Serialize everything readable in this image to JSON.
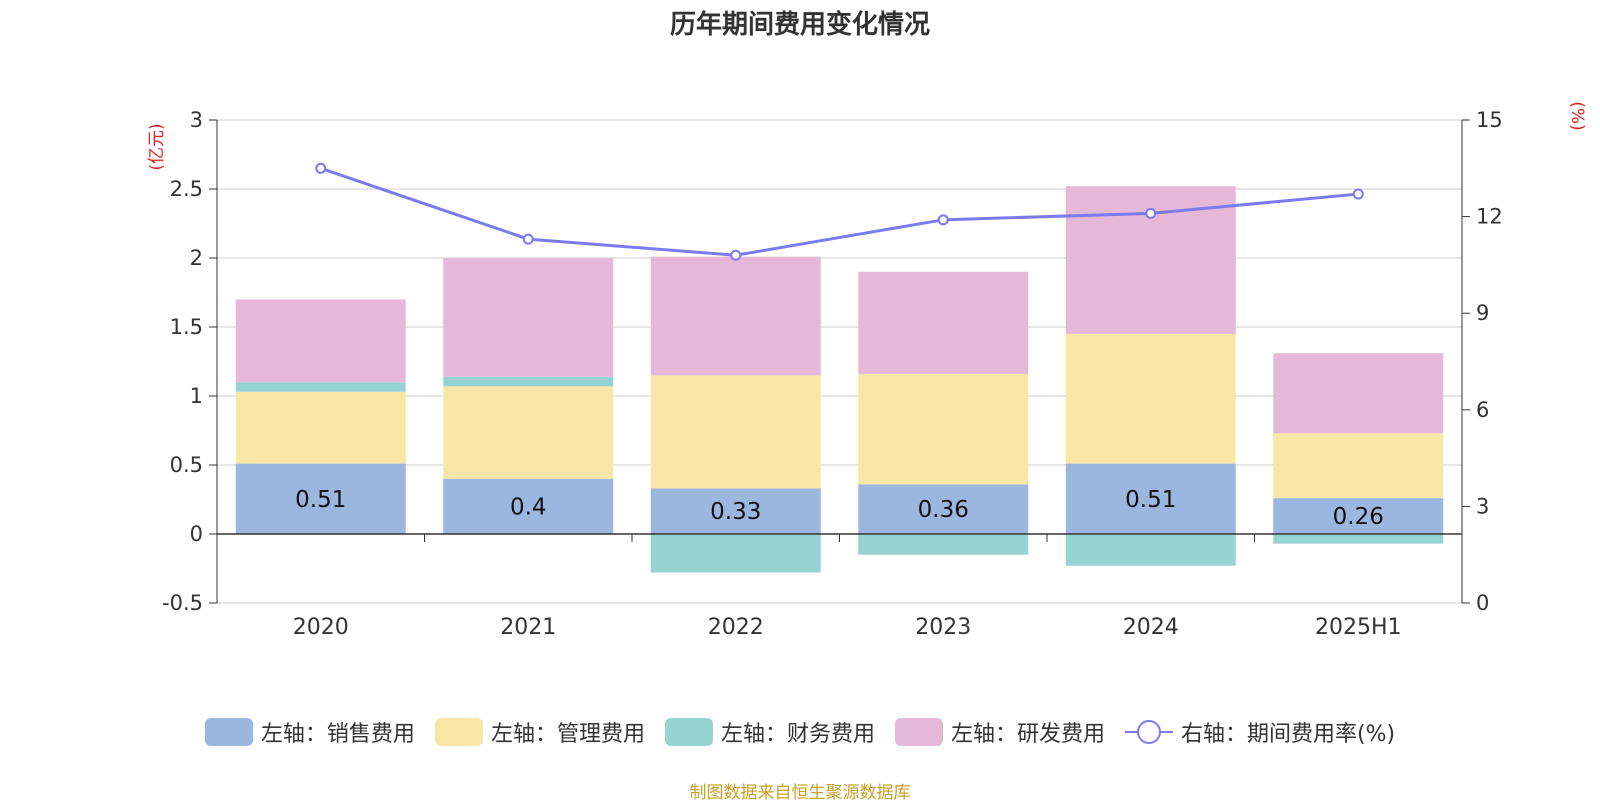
{
  "chart_data": {
    "type": "bar",
    "title": "历年期间费用变化情况",
    "categories": [
      "2020",
      "2021",
      "2022",
      "2023",
      "2024",
      "2025H1"
    ],
    "left_axis": {
      "unit": "(亿元)",
      "ticks": [
        "3",
        "2.5",
        "2",
        "1.5",
        "1",
        "0.5",
        "0",
        "-0.5"
      ],
      "range": [
        -0.5,
        3
      ]
    },
    "right_axis": {
      "unit": "(%)",
      "ticks": [
        "15",
        "12",
        "9",
        "6",
        "3",
        "0"
      ],
      "range": [
        0,
        15
      ]
    },
    "grid": true,
    "stacked": true,
    "series": [
      {
        "name": "左轴：销售费用",
        "axis": "left",
        "type": "bar",
        "color": "#9bb7e0",
        "values": [
          0.51,
          0.4,
          0.33,
          0.36,
          0.51,
          0.26
        ]
      },
      {
        "name": "左轴：管理费用",
        "axis": "left",
        "type": "bar",
        "color": "#f8e6a6",
        "values": [
          0.52,
          0.67,
          0.82,
          0.8,
          0.94,
          0.47
        ]
      },
      {
        "name": "左轴：财务费用",
        "axis": "left",
        "type": "bar",
        "color": "#96d4d4",
        "values": [
          0.07,
          0.07,
          -0.28,
          -0.15,
          -0.23,
          -0.07
        ]
      },
      {
        "name": "左轴：研发费用",
        "axis": "left",
        "type": "bar",
        "color": "#e6b8d8",
        "values": [
          0.6,
          0.86,
          0.86,
          0.74,
          1.07,
          0.58
        ]
      },
      {
        "name": "右轴：期间费用率(%)",
        "axis": "right",
        "type": "line",
        "color": "#7b7bef",
        "values": [
          13.5,
          11.3,
          10.8,
          11.9,
          12.1,
          12.7
        ]
      }
    ],
    "data_labels": [
      "0.51",
      "0.4",
      "0.33",
      "0.36",
      "0.51",
      "0.26"
    ],
    "legend_position": "bottom"
  },
  "footer": "制图数据来自恒生聚源数据库"
}
